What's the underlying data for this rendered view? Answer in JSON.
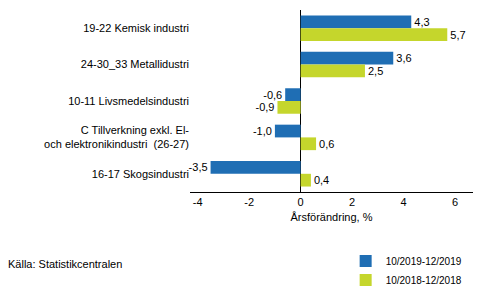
{
  "chart_data": {
    "type": "bar",
    "orientation": "horizontal",
    "categories": [
      "19-22 Kemisk industri",
      "24-30_33 Metallidustri",
      "10-11 Livsmedelsindustri",
      "C Tillverkning exkl. El-\noch elektronikindustri  (26-27)",
      "16-17 Skogsindustri"
    ],
    "series": [
      {
        "name": "10/2019-12/2019",
        "color": "#1f6eb4",
        "values": [
          4.3,
          3.6,
          -0.6,
          -1.0,
          -3.5
        ],
        "value_labels": [
          "4,3",
          "3,6",
          "-0,6",
          "-1,0",
          "-3,5"
        ]
      },
      {
        "name": "10/2018-12/2018",
        "color": "#c5d62c",
        "values": [
          5.7,
          2.5,
          -0.9,
          0.6,
          0.4
        ],
        "value_labels": [
          "5,7",
          "2,5",
          "-0,9",
          "0,6",
          "0,4"
        ]
      }
    ],
    "x_label": "Årsförändring, %",
    "xlim": [
      -4.3,
      6.7
    ],
    "xticks": [
      -4,
      -2,
      0,
      2,
      4,
      6
    ],
    "grid": false,
    "data_labels": true,
    "legend": "bottom",
    "source": "Källa: Statistikcentralen"
  }
}
